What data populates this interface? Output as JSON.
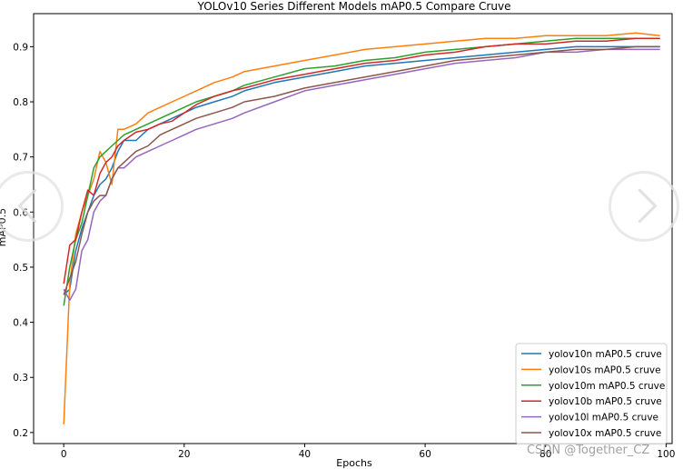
{
  "chart_data": {
    "type": "line",
    "title": "YOLOv10 Series Different Models mAP0.5 Compare Cruve",
    "xlabel": "Epochs",
    "ylabel": "mAP0.5",
    "xlim": [
      -5,
      101
    ],
    "ylim": [
      0.18,
      0.96
    ],
    "xticks": [
      0,
      20,
      40,
      60,
      80,
      100
    ],
    "yticks": [
      0.2,
      0.3,
      0.4,
      0.5,
      0.6,
      0.7,
      0.8,
      0.9
    ],
    "grid": false,
    "legend_position": "lower-right",
    "series": [
      {
        "name": "yolov10n mAP0.5 cruve",
        "color": "#1f77b4",
        "x": [
          0,
          1,
          2,
          3,
          4,
          5,
          6,
          7,
          8,
          9,
          10,
          12,
          14,
          16,
          18,
          20,
          22,
          25,
          28,
          30,
          35,
          40,
          45,
          50,
          55,
          60,
          65,
          70,
          75,
          80,
          85,
          90,
          95,
          99
        ],
        "y": [
          0.45,
          0.46,
          0.53,
          0.57,
          0.6,
          0.63,
          0.65,
          0.66,
          0.68,
          0.71,
          0.73,
          0.73,
          0.75,
          0.76,
          0.77,
          0.78,
          0.79,
          0.8,
          0.81,
          0.82,
          0.835,
          0.845,
          0.855,
          0.865,
          0.87,
          0.875,
          0.88,
          0.885,
          0.89,
          0.895,
          0.9,
          0.9,
          0.9,
          0.9
        ]
      },
      {
        "name": "yolov10s mAP0.5 cruve",
        "color": "#ff7f0e",
        "x": [
          0,
          1,
          2,
          3,
          4,
          5,
          6,
          7,
          8,
          9,
          10,
          12,
          14,
          16,
          18,
          20,
          22,
          25,
          28,
          30,
          35,
          40,
          45,
          50,
          55,
          60,
          65,
          70,
          75,
          80,
          85,
          90,
          95,
          99
        ],
        "y": [
          0.215,
          0.47,
          0.56,
          0.6,
          0.63,
          0.66,
          0.71,
          0.69,
          0.65,
          0.75,
          0.75,
          0.76,
          0.78,
          0.79,
          0.8,
          0.81,
          0.82,
          0.835,
          0.845,
          0.855,
          0.865,
          0.875,
          0.885,
          0.895,
          0.9,
          0.905,
          0.91,
          0.915,
          0.915,
          0.92,
          0.92,
          0.92,
          0.925,
          0.92
        ]
      },
      {
        "name": "yolov10m mAP0.5 cruve",
        "color": "#2ca02c",
        "x": [
          0,
          1,
          2,
          3,
          4,
          5,
          6,
          7,
          8,
          9,
          10,
          12,
          14,
          16,
          18,
          20,
          22,
          25,
          28,
          30,
          35,
          40,
          45,
          50,
          55,
          60,
          65,
          70,
          75,
          80,
          85,
          90,
          95,
          99
        ],
        "y": [
          0.43,
          0.5,
          0.55,
          0.58,
          0.63,
          0.68,
          0.7,
          0.71,
          0.72,
          0.73,
          0.74,
          0.75,
          0.76,
          0.77,
          0.78,
          0.79,
          0.8,
          0.81,
          0.82,
          0.83,
          0.845,
          0.86,
          0.865,
          0.875,
          0.88,
          0.89,
          0.895,
          0.9,
          0.905,
          0.91,
          0.915,
          0.915,
          0.915,
          0.915
        ]
      },
      {
        "name": "yolov10b mAP0.5 cruve",
        "color": "#d62728",
        "x": [
          0,
          1,
          2,
          3,
          4,
          5,
          6,
          7,
          8,
          9,
          10,
          12,
          14,
          16,
          18,
          20,
          22,
          25,
          28,
          30,
          35,
          40,
          45,
          50,
          55,
          60,
          65,
          70,
          75,
          80,
          85,
          90,
          95,
          99
        ],
        "y": [
          0.47,
          0.54,
          0.55,
          0.6,
          0.64,
          0.63,
          0.67,
          0.69,
          0.7,
          0.72,
          0.73,
          0.745,
          0.75,
          0.76,
          0.765,
          0.78,
          0.795,
          0.81,
          0.82,
          0.825,
          0.84,
          0.85,
          0.86,
          0.87,
          0.875,
          0.885,
          0.89,
          0.9,
          0.905,
          0.905,
          0.91,
          0.91,
          0.915,
          0.915
        ]
      },
      {
        "name": "yolov10l mAP0.5 cruve",
        "color": "#9467bd",
        "x": [
          0,
          1,
          2,
          3,
          4,
          5,
          6,
          7,
          8,
          9,
          10,
          12,
          14,
          16,
          18,
          20,
          22,
          25,
          28,
          30,
          35,
          40,
          45,
          50,
          55,
          60,
          65,
          70,
          75,
          80,
          85,
          90,
          95,
          99
        ],
        "y": [
          0.46,
          0.44,
          0.46,
          0.53,
          0.55,
          0.6,
          0.62,
          0.63,
          0.66,
          0.68,
          0.68,
          0.7,
          0.71,
          0.72,
          0.73,
          0.74,
          0.75,
          0.76,
          0.77,
          0.78,
          0.8,
          0.82,
          0.83,
          0.84,
          0.85,
          0.86,
          0.87,
          0.875,
          0.88,
          0.89,
          0.89,
          0.895,
          0.895,
          0.895
        ]
      },
      {
        "name": "yolov10x mAP0.5 cruve",
        "color": "#8c564b",
        "x": [
          0,
          1,
          2,
          3,
          4,
          5,
          6,
          7,
          8,
          9,
          10,
          12,
          14,
          16,
          18,
          20,
          22,
          25,
          28,
          30,
          35,
          40,
          45,
          50,
          55,
          60,
          65,
          70,
          75,
          80,
          85,
          90,
          95,
          99
        ],
        "y": [
          0.45,
          0.48,
          0.51,
          0.56,
          0.6,
          0.62,
          0.63,
          0.63,
          0.66,
          0.68,
          0.69,
          0.71,
          0.72,
          0.74,
          0.75,
          0.76,
          0.77,
          0.78,
          0.79,
          0.8,
          0.81,
          0.825,
          0.835,
          0.845,
          0.855,
          0.865,
          0.875,
          0.88,
          0.885,
          0.89,
          0.895,
          0.895,
          0.9,
          0.9
        ]
      }
    ]
  },
  "overlay": {
    "watermark": "CSDN @Together_CZ",
    "prev_icon": "chevron-left-icon",
    "next_icon": "chevron-right-icon"
  }
}
